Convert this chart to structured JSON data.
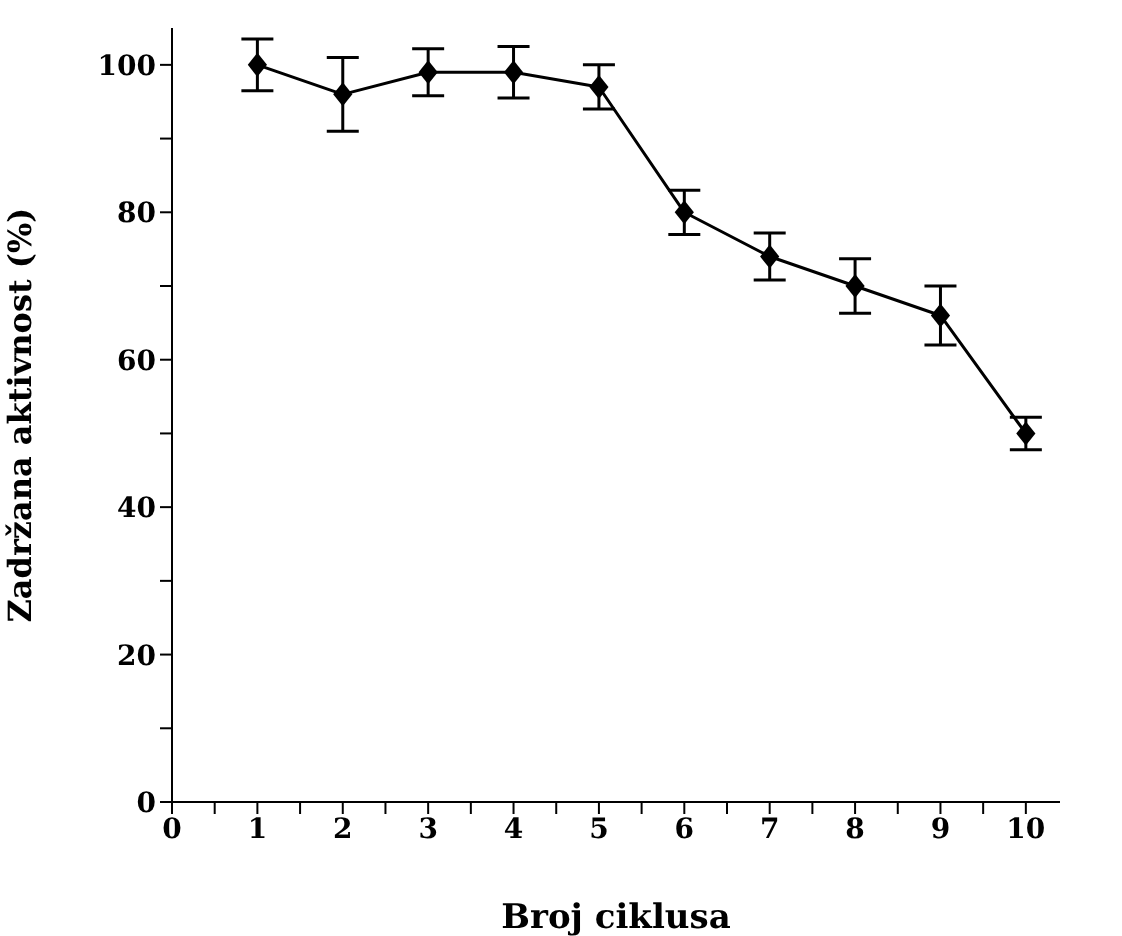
{
  "chart_data": {
    "type": "line",
    "xlabel": "Broj ciklusa",
    "ylabel": "Zadržana   aktivnost (%)",
    "x": [
      1,
      2,
      3,
      4,
      5,
      6,
      7,
      8,
      9,
      10
    ],
    "series": [
      {
        "color": "#000000",
        "values": [
          100,
          96,
          99,
          99,
          97,
          80,
          74,
          70,
          66,
          50
        ],
        "errors": [
          3.5,
          5,
          3.2,
          3.5,
          3,
          3,
          3.2,
          3.7,
          4,
          2.2
        ]
      }
    ],
    "xlim": [
      0,
      10.4
    ],
    "ylim": [
      0,
      105
    ],
    "xticks": [
      0,
      {
        "value": 0.5,
        "label": null
      },
      1,
      {
        "value": 1.5,
        "label": null
      },
      2,
      {
        "value": 2.5,
        "label": null
      },
      3,
      {
        "value": 3.5,
        "label": null
      },
      4,
      {
        "value": 4.5,
        "label": null
      },
      5,
      {
        "value": 5.5,
        "label": null
      },
      6,
      {
        "value": 6.5,
        "label": null
      },
      7,
      {
        "value": 7.5,
        "label": null
      },
      8,
      {
        "value": 8.5,
        "label": null
      },
      9,
      {
        "value": 9.5,
        "label": null
      },
      10
    ],
    "yticks": [
      0,
      {
        "value": 10,
        "label": null
      },
      20,
      {
        "value": 30,
        "label": null
      },
      40,
      {
        "value": 50,
        "label": null
      },
      60,
      {
        "value": 70,
        "label": null
      },
      80,
      {
        "value": 90,
        "label": null
      },
      100
    ],
    "marker": "diamond",
    "line_style": "solid",
    "grid": false,
    "legend": false
  }
}
